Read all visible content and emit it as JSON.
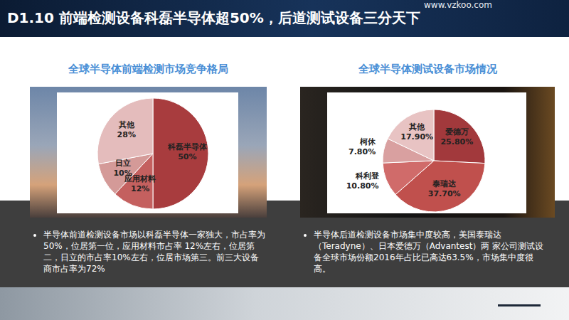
{
  "header": {
    "title": "D1.10  前端检测设备科磊半导体超50%，后道测试设备三分天下",
    "url": "www.vzkoo.com"
  },
  "chart_data": [
    {
      "type": "pie",
      "title": "全球半导体前端检测市场竞争格局",
      "categories": [
        "科磊半导体",
        "应用材料",
        "日立",
        "其他"
      ],
      "values": [
        50,
        12,
        10,
        28
      ],
      "value_labels": [
        "50%",
        "12%",
        "10%",
        "28%"
      ],
      "colors": [
        "#a83c3e",
        "#c4605f",
        "#d49a98",
        "#e4bcbc"
      ],
      "data_labels": true,
      "annotations": [
        "半导体前道检测设备市场以科磊半导体一家独大，市占率为50%，位居第一位，应用材料市占率  12%左右，位居第二，日立的市占率10%左右，位居市场第三。前三大设备商市占率为72%"
      ]
    },
    {
      "type": "pie",
      "title": "全球半导体测试设备市场情况",
      "categories": [
        "爱德万",
        "泰瑞达",
        "科利登",
        "柯休",
        "其他"
      ],
      "values": [
        25.8,
        37.7,
        10.8,
        7.8,
        17.9
      ],
      "value_labels": [
        "25.80%",
        "37.70%",
        "10.80%",
        "7.80%",
        "17.90%"
      ],
      "colors": [
        "#a2393c",
        "#c0504d",
        "#d06b6a",
        "#d9a0a0",
        "#e8c3c3"
      ],
      "data_labels": true,
      "annotations": [
        "半导体后道检测设备市场集中度较高，美国泰瑞达（Teradyne）、日本爱德万（Advantest）两  家公司测试设备全球市场份额2016年占比已高达63.5%，市场集中度很高。"
      ]
    }
  ]
}
